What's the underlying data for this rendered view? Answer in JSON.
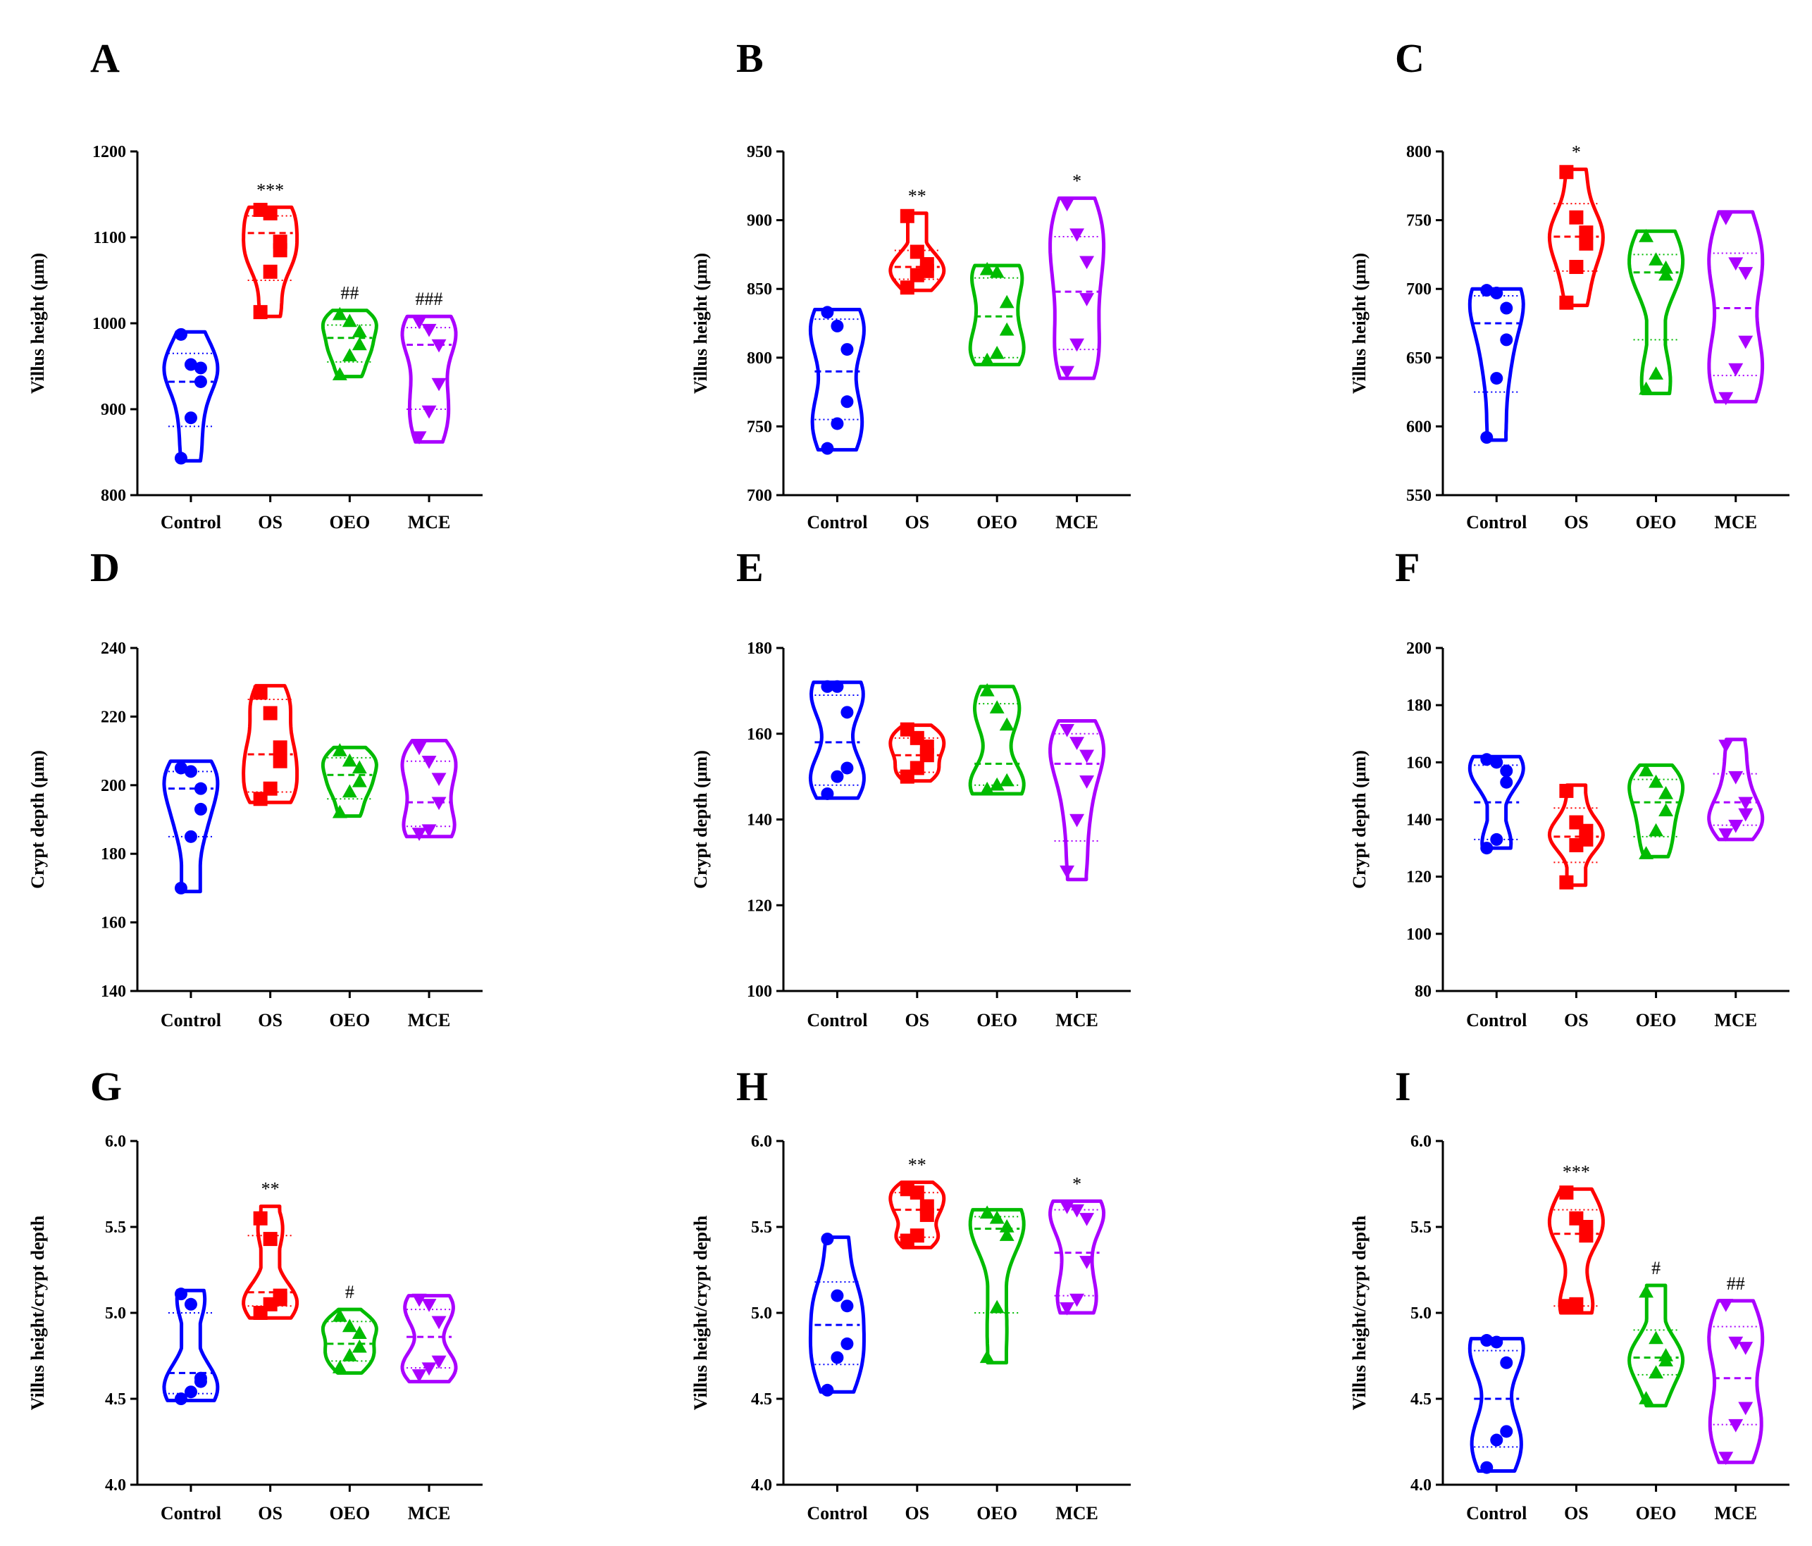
{
  "chart_data": [
    {
      "id": "A",
      "type": "violin",
      "ylabel": "Villus height (μm)",
      "ylim": [
        800,
        1200
      ],
      "yticks": [
        800,
        900,
        1000,
        1100,
        1200
      ],
      "categories": [
        "Control",
        "OS",
        "OEO",
        "MCE"
      ],
      "series": [
        {
          "name": "Control",
          "color": "#0000ff",
          "marker": "circle",
          "range": [
            840,
            990
          ],
          "values": [
            843,
            890,
            932,
            948,
            952,
            987
          ],
          "median": 932,
          "quartiles": [
            880,
            965
          ],
          "significance": ""
        },
        {
          "name": "OS",
          "color": "#ff0000",
          "marker": "square",
          "range": [
            1008,
            1135
          ],
          "values": [
            1013,
            1060,
            1085,
            1095,
            1128,
            1132
          ],
          "median": 1105,
          "quartiles": [
            1050,
            1125
          ],
          "significance": "***"
        },
        {
          "name": "OEO",
          "color": "#00bb00",
          "marker": "triangle",
          "range": [
            938,
            1015
          ],
          "values": [
            940,
            962,
            975,
            990,
            1002,
            1010
          ],
          "median": 983,
          "quartiles": [
            955,
            998
          ],
          "significance": "##"
        },
        {
          "name": "MCE",
          "color": "#aa00ff",
          "marker": "triangle-down",
          "range": [
            862,
            1008
          ],
          "values": [
            868,
            898,
            930,
            975,
            993,
            1002
          ],
          "median": 975,
          "quartiles": [
            900,
            995
          ],
          "significance": "###"
        }
      ]
    },
    {
      "id": "B",
      "type": "violin",
      "ylabel": "Villus height (μm)",
      "ylim": [
        700,
        950
      ],
      "yticks": [
        700,
        750,
        800,
        850,
        900,
        950
      ],
      "categories": [
        "Control",
        "OS",
        "OEO",
        "MCE"
      ],
      "series": [
        {
          "name": "Control",
          "color": "#0000ff",
          "marker": "circle",
          "range": [
            733,
            835
          ],
          "values": [
            734,
            752,
            768,
            806,
            823,
            833
          ],
          "median": 790,
          "quartiles": [
            755,
            828
          ],
          "significance": ""
        },
        {
          "name": "OS",
          "color": "#ff0000",
          "marker": "square",
          "range": [
            849,
            905
          ],
          "values": [
            851,
            860,
            863,
            868,
            877,
            903
          ],
          "median": 866,
          "quartiles": [
            857,
            878
          ],
          "significance": "**"
        },
        {
          "name": "OEO",
          "color": "#00bb00",
          "marker": "triangle",
          "range": [
            795,
            867
          ],
          "values": [
            798,
            803,
            820,
            840,
            862,
            864
          ],
          "median": 830,
          "quartiles": [
            800,
            858
          ],
          "significance": ""
        },
        {
          "name": "MCE",
          "color": "#aa00ff",
          "marker": "triangle-down",
          "range": [
            785,
            916
          ],
          "values": [
            790,
            810,
            843,
            870,
            890,
            912
          ],
          "median": 848,
          "quartiles": [
            806,
            888
          ],
          "significance": "*"
        }
      ]
    },
    {
      "id": "C",
      "type": "violin",
      "ylabel": "Villus height (μm)",
      "ylim": [
        550,
        800
      ],
      "yticks": [
        550,
        600,
        650,
        700,
        750,
        800
      ],
      "categories": [
        "Control",
        "OS",
        "OEO",
        "MCE"
      ],
      "series": [
        {
          "name": "Control",
          "color": "#0000ff",
          "marker": "circle",
          "range": [
            590,
            700
          ],
          "values": [
            592,
            635,
            663,
            686,
            697,
            699
          ],
          "median": 675,
          "quartiles": [
            625,
            695
          ],
          "significance": ""
        },
        {
          "name": "OS",
          "color": "#ff0000",
          "marker": "square",
          "range": [
            688,
            787
          ],
          "values": [
            690,
            716,
            733,
            741,
            752,
            785
          ],
          "median": 738,
          "quartiles": [
            713,
            762
          ],
          "significance": "*"
        },
        {
          "name": "OEO",
          "color": "#00bb00",
          "marker": "triangle",
          "range": [
            624,
            742
          ],
          "values": [
            627,
            638,
            710,
            715,
            721,
            738
          ],
          "median": 712,
          "quartiles": [
            663,
            725
          ],
          "significance": ""
        },
        {
          "name": "MCE",
          "color": "#aa00ff",
          "marker": "triangle-down",
          "range": [
            618,
            756
          ],
          "values": [
            621,
            642,
            662,
            712,
            719,
            752
          ],
          "median": 686,
          "quartiles": [
            637,
            726
          ],
          "significance": ""
        }
      ]
    },
    {
      "id": "D",
      "type": "violin",
      "ylabel": "Crypt depth (μm)",
      "ylim": [
        140,
        240
      ],
      "yticks": [
        140,
        160,
        180,
        200,
        220,
        240
      ],
      "categories": [
        "Control",
        "OS",
        "OEO",
        "MCE"
      ],
      "series": [
        {
          "name": "Control",
          "color": "#0000ff",
          "marker": "circle",
          "range": [
            169,
            207
          ],
          "values": [
            170,
            185,
            193,
            199,
            204,
            205
          ],
          "median": 199,
          "quartiles": [
            185,
            204
          ],
          "significance": ""
        },
        {
          "name": "OS",
          "color": "#ff0000",
          "marker": "square",
          "range": [
            195,
            229
          ],
          "values": [
            196,
            199,
            207,
            211,
            221,
            227
          ],
          "median": 209,
          "quartiles": [
            198,
            225
          ],
          "significance": ""
        },
        {
          "name": "OEO",
          "color": "#00bb00",
          "marker": "triangle",
          "range": [
            191,
            211
          ],
          "values": [
            192,
            198,
            201,
            205,
            207,
            210
          ],
          "median": 203,
          "quartiles": [
            196,
            208
          ],
          "significance": ""
        },
        {
          "name": "MCE",
          "color": "#aa00ff",
          "marker": "triangle-down",
          "range": [
            185,
            213
          ],
          "values": [
            186,
            187,
            195,
            202,
            207,
            211
          ],
          "median": 195,
          "quartiles": [
            188,
            207
          ],
          "significance": ""
        }
      ]
    },
    {
      "id": "E",
      "type": "violin",
      "ylabel": "Crypt depth (μm)",
      "ylim": [
        100,
        180
      ],
      "yticks": [
        100,
        120,
        140,
        160,
        180
      ],
      "categories": [
        "Control",
        "OS",
        "OEO",
        "MCE"
      ],
      "series": [
        {
          "name": "Control",
          "color": "#0000ff",
          "marker": "circle",
          "range": [
            145,
            172
          ],
          "values": [
            146,
            150,
            152,
            165,
            171,
            171
          ],
          "median": 158,
          "quartiles": [
            148,
            169
          ],
          "significance": ""
        },
        {
          "name": "OS",
          "color": "#ff0000",
          "marker": "square",
          "range": [
            149,
            162
          ],
          "values": [
            150,
            152,
            155,
            157,
            159,
            161
          ],
          "median": 155,
          "quartiles": [
            151,
            159
          ],
          "significance": ""
        },
        {
          "name": "OEO",
          "color": "#00bb00",
          "marker": "triangle",
          "range": [
            146,
            171
          ],
          "values": [
            147,
            148,
            149,
            162,
            166,
            170
          ],
          "median": 153,
          "quartiles": [
            148,
            167
          ],
          "significance": ""
        },
        {
          "name": "MCE",
          "color": "#aa00ff",
          "marker": "triangle-down",
          "range": [
            126,
            163
          ],
          "values": [
            128,
            140,
            149,
            155,
            158,
            161
          ],
          "median": 153,
          "quartiles": [
            135,
            160
          ],
          "significance": ""
        }
      ]
    },
    {
      "id": "F",
      "type": "violin",
      "ylabel": "Crypt depth (μm)",
      "ylim": [
        80,
        200
      ],
      "yticks": [
        80,
        100,
        120,
        140,
        160,
        180,
        200
      ],
      "categories": [
        "Control",
        "OS",
        "OEO",
        "MCE"
      ],
      "series": [
        {
          "name": "Control",
          "color": "#0000ff",
          "marker": "circle",
          "range": [
            130,
            162
          ],
          "values": [
            130,
            133,
            153,
            157,
            160,
            161
          ],
          "median": 146,
          "quartiles": [
            133,
            159
          ],
          "significance": ""
        },
        {
          "name": "OS",
          "color": "#ff0000",
          "marker": "square",
          "range": [
            117,
            152
          ],
          "values": [
            118,
            131,
            133,
            136,
            139,
            150
          ],
          "median": 134,
          "quartiles": [
            125,
            144
          ],
          "significance": ""
        },
        {
          "name": "OEO",
          "color": "#00bb00",
          "marker": "triangle",
          "range": [
            127,
            159
          ],
          "values": [
            128,
            136,
            143,
            149,
            153,
            157
          ],
          "median": 146,
          "quartiles": [
            134,
            154
          ],
          "significance": ""
        },
        {
          "name": "MCE",
          "color": "#aa00ff",
          "marker": "triangle-down",
          "range": [
            133,
            168
          ],
          "values": [
            135,
            138,
            142,
            146,
            155,
            166
          ],
          "median": 146,
          "quartiles": [
            138,
            156
          ],
          "significance": ""
        }
      ]
    },
    {
      "id": "G",
      "type": "violin",
      "ylabel": "Villus height/crypt depth",
      "ylim": [
        4.0,
        6.0
      ],
      "yticks": [
        4.0,
        4.5,
        5.0,
        5.5,
        6.0
      ],
      "categories": [
        "Control",
        "OS",
        "OEO",
        "MCE"
      ],
      "series": [
        {
          "name": "Control",
          "color": "#0000ff",
          "marker": "circle",
          "range": [
            4.49,
            5.13
          ],
          "values": [
            4.5,
            4.54,
            4.6,
            4.62,
            5.05,
            5.11
          ],
          "median": 4.65,
          "quartiles": [
            4.53,
            5.0
          ],
          "significance": ""
        },
        {
          "name": "OS",
          "color": "#ff0000",
          "marker": "square",
          "range": [
            4.97,
            5.62
          ],
          "values": [
            5.0,
            5.05,
            5.08,
            5.1,
            5.43,
            5.55
          ],
          "median": 5.12,
          "quartiles": [
            5.04,
            5.45
          ],
          "significance": "**"
        },
        {
          "name": "OEO",
          "color": "#00bb00",
          "marker": "triangle",
          "range": [
            4.65,
            5.02
          ],
          "values": [
            4.68,
            4.75,
            4.8,
            4.88,
            4.92,
            4.98
          ],
          "median": 4.82,
          "quartiles": [
            4.72,
            4.95
          ],
          "significance": "#"
        },
        {
          "name": "MCE",
          "color": "#aa00ff",
          "marker": "triangle-down",
          "range": [
            4.6,
            5.1
          ],
          "values": [
            4.64,
            4.68,
            4.72,
            4.95,
            5.05,
            5.08
          ],
          "median": 4.86,
          "quartiles": [
            4.68,
            5.02
          ],
          "significance": ""
        }
      ]
    },
    {
      "id": "H",
      "type": "violin",
      "ylabel": "Villus height/crypt depth",
      "ylim": [
        4.0,
        6.0
      ],
      "yticks": [
        4.0,
        4.5,
        5.0,
        5.5,
        6.0
      ],
      "categories": [
        "Control",
        "OS",
        "OEO",
        "MCE"
      ],
      "series": [
        {
          "name": "Control",
          "color": "#0000ff",
          "marker": "circle",
          "range": [
            4.54,
            5.44
          ],
          "values": [
            4.55,
            4.74,
            4.82,
            5.04,
            5.1,
            5.43
          ],
          "median": 4.93,
          "quartiles": [
            4.7,
            5.18
          ],
          "significance": ""
        },
        {
          "name": "OS",
          "color": "#ff0000",
          "marker": "square",
          "range": [
            5.38,
            5.76
          ],
          "values": [
            5.42,
            5.45,
            5.57,
            5.62,
            5.7,
            5.72
          ],
          "median": 5.6,
          "quartiles": [
            5.44,
            5.7
          ],
          "significance": "**"
        },
        {
          "name": "OEO",
          "color": "#00bb00",
          "marker": "triangle",
          "range": [
            4.71,
            5.6
          ],
          "values": [
            4.74,
            5.03,
            5.45,
            5.5,
            5.55,
            5.58
          ],
          "median": 5.49,
          "quartiles": [
            5.0,
            5.56
          ],
          "significance": ""
        },
        {
          "name": "MCE",
          "color": "#aa00ff",
          "marker": "triangle-down",
          "range": [
            5.0,
            5.65
          ],
          "values": [
            5.03,
            5.08,
            5.3,
            5.55,
            5.6,
            5.62
          ],
          "median": 5.35,
          "quartiles": [
            5.1,
            5.6
          ],
          "significance": "*"
        }
      ]
    },
    {
      "id": "I",
      "type": "violin",
      "ylabel": "Villus height/crypt depth",
      "ylim": [
        4.0,
        6.0
      ],
      "yticks": [
        4.0,
        4.5,
        5.0,
        5.5,
        6.0
      ],
      "categories": [
        "Control",
        "OS",
        "OEO",
        "MCE"
      ],
      "series": [
        {
          "name": "Control",
          "color": "#0000ff",
          "marker": "circle",
          "range": [
            4.08,
            4.85
          ],
          "values": [
            4.1,
            4.26,
            4.31,
            4.71,
            4.83,
            4.84
          ],
          "median": 4.5,
          "quartiles": [
            4.22,
            4.78
          ],
          "significance": ""
        },
        {
          "name": "OS",
          "color": "#ff0000",
          "marker": "square",
          "range": [
            5.0,
            5.72
          ],
          "values": [
            5.04,
            5.05,
            5.45,
            5.5,
            5.55,
            5.7
          ],
          "median": 5.46,
          "quartiles": [
            5.04,
            5.6
          ],
          "significance": "***"
        },
        {
          "name": "OEO",
          "color": "#00bb00",
          "marker": "triangle",
          "range": [
            4.46,
            5.16
          ],
          "values": [
            4.5,
            4.65,
            4.72,
            4.75,
            4.85,
            5.12
          ],
          "median": 4.74,
          "quartiles": [
            4.64,
            4.9
          ],
          "significance": "#"
        },
        {
          "name": "MCE",
          "color": "#aa00ff",
          "marker": "triangle-down",
          "range": [
            4.13,
            5.07
          ],
          "values": [
            4.16,
            4.35,
            4.45,
            4.8,
            4.83,
            5.05
          ],
          "median": 4.62,
          "quartiles": [
            4.35,
            4.92
          ],
          "significance": "##"
        }
      ]
    }
  ]
}
